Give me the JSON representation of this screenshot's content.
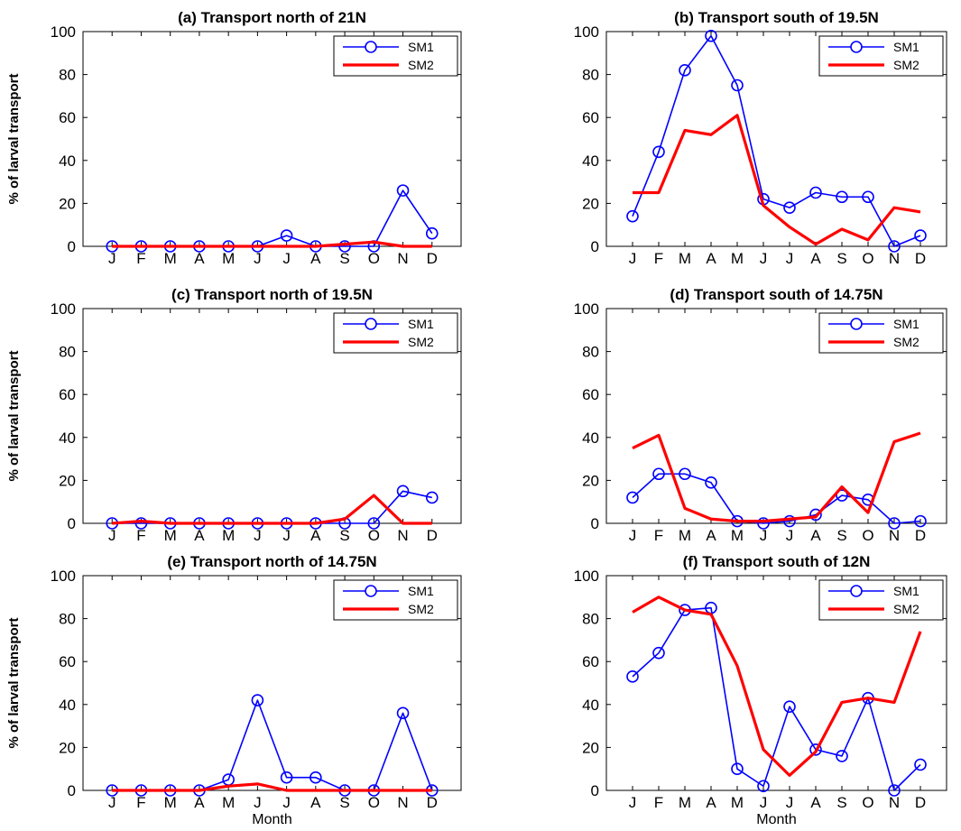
{
  "chart_data": [
    {
      "type": "line",
      "title": "(a) Transport north of 21N",
      "xlabel": "",
      "ylabel": "% of larval transport",
      "categories": [
        "J",
        "F",
        "M",
        "A",
        "M",
        "J",
        "J",
        "A",
        "S",
        "O",
        "N",
        "D"
      ],
      "ylim": [
        0,
        100
      ],
      "yticks": [
        0,
        20,
        40,
        60,
        80,
        100
      ],
      "legend_position": "top-right",
      "series": [
        {
          "name": "SM1",
          "color": "#0000ff",
          "marker": "circle",
          "values": [
            0,
            0,
            0,
            0,
            0,
            0,
            5,
            0,
            0,
            0,
            26,
            6
          ]
        },
        {
          "name": "SM2",
          "color": "#ff0000",
          "marker": "none",
          "values": [
            0,
            0,
            0,
            0,
            0,
            0,
            0,
            0,
            1,
            2,
            0,
            0
          ]
        }
      ]
    },
    {
      "type": "line",
      "title": "(b) Transport south of 19.5N",
      "xlabel": "",
      "ylabel": "",
      "categories": [
        "J",
        "F",
        "M",
        "A",
        "M",
        "J",
        "J",
        "A",
        "S",
        "O",
        "N",
        "D"
      ],
      "ylim": [
        0,
        100
      ],
      "yticks": [
        0,
        20,
        40,
        60,
        80,
        100
      ],
      "legend_position": "top-right",
      "series": [
        {
          "name": "SM1",
          "color": "#0000ff",
          "marker": "circle",
          "values": [
            14,
            44,
            82,
            98,
            75,
            22,
            18,
            25,
            23,
            23,
            0,
            5
          ]
        },
        {
          "name": "SM2",
          "color": "#ff0000",
          "marker": "none",
          "values": [
            25,
            25,
            54,
            52,
            61,
            19,
            9,
            1,
            8,
            3,
            18,
            16
          ]
        }
      ]
    },
    {
      "type": "line",
      "title": "(c) Transport north of 19.5N",
      "xlabel": "",
      "ylabel": "% of larval transport",
      "categories": [
        "J",
        "F",
        "M",
        "A",
        "M",
        "J",
        "J",
        "A",
        "S",
        "O",
        "N",
        "D"
      ],
      "ylim": [
        0,
        100
      ],
      "yticks": [
        0,
        20,
        40,
        60,
        80,
        100
      ],
      "legend_position": "top-right",
      "series": [
        {
          "name": "SM1",
          "color": "#0000ff",
          "marker": "circle",
          "values": [
            0,
            0,
            0,
            0,
            0,
            0,
            0,
            0,
            0,
            0,
            15,
            12
          ]
        },
        {
          "name": "SM2",
          "color": "#ff0000",
          "marker": "none",
          "values": [
            0,
            1,
            0,
            0,
            0,
            0,
            0,
            0,
            2,
            13,
            0,
            0
          ]
        }
      ]
    },
    {
      "type": "line",
      "title": "(d) Transport south of 14.75N",
      "xlabel": "",
      "ylabel": "",
      "categories": [
        "J",
        "F",
        "M",
        "A",
        "M",
        "J",
        "J",
        "A",
        "S",
        "O",
        "N",
        "D"
      ],
      "ylim": [
        0,
        100
      ],
      "yticks": [
        0,
        20,
        40,
        60,
        80,
        100
      ],
      "legend_position": "top-right",
      "series": [
        {
          "name": "SM1",
          "color": "#0000ff",
          "marker": "circle",
          "values": [
            12,
            23,
            23,
            19,
            1,
            0,
            1,
            4,
            13,
            11,
            0,
            1
          ]
        },
        {
          "name": "SM2",
          "color": "#ff0000",
          "marker": "none",
          "values": [
            35,
            41,
            7,
            2,
            1,
            1,
            2,
            3,
            17,
            5,
            38,
            42
          ]
        }
      ]
    },
    {
      "type": "line",
      "title": "(e) Transport north of 14.75N",
      "xlabel": "Month",
      "ylabel": "% of larval transport",
      "categories": [
        "J",
        "F",
        "M",
        "A",
        "M",
        "J",
        "J",
        "A",
        "S",
        "O",
        "N",
        "D"
      ],
      "ylim": [
        0,
        100
      ],
      "yticks": [
        0,
        20,
        40,
        60,
        80,
        100
      ],
      "legend_position": "top-right",
      "series": [
        {
          "name": "SM1",
          "color": "#0000ff",
          "marker": "circle",
          "values": [
            0,
            0,
            0,
            0,
            5,
            42,
            6,
            6,
            0,
            0,
            36,
            0
          ]
        },
        {
          "name": "SM2",
          "color": "#ff0000",
          "marker": "none",
          "values": [
            0,
            0,
            0,
            0,
            2,
            3,
            0,
            0,
            0,
            0,
            0,
            0
          ]
        }
      ]
    },
    {
      "type": "line",
      "title": "(f) Transport south of 12N",
      "xlabel": "Month",
      "ylabel": "",
      "categories": [
        "J",
        "F",
        "M",
        "A",
        "M",
        "J",
        "J",
        "A",
        "S",
        "O",
        "N",
        "D"
      ],
      "ylim": [
        0,
        100
      ],
      "yticks": [
        0,
        20,
        40,
        60,
        80,
        100
      ],
      "legend_position": "top-right",
      "series": [
        {
          "name": "SM1",
          "color": "#0000ff",
          "marker": "circle",
          "values": [
            53,
            64,
            84,
            85,
            10,
            2,
            39,
            19,
            16,
            43,
            0,
            12
          ]
        },
        {
          "name": "SM2",
          "color": "#ff0000",
          "marker": "none",
          "values": [
            83,
            90,
            84,
            82,
            58,
            19,
            7,
            18,
            41,
            43,
            41,
            74
          ]
        }
      ]
    }
  ]
}
